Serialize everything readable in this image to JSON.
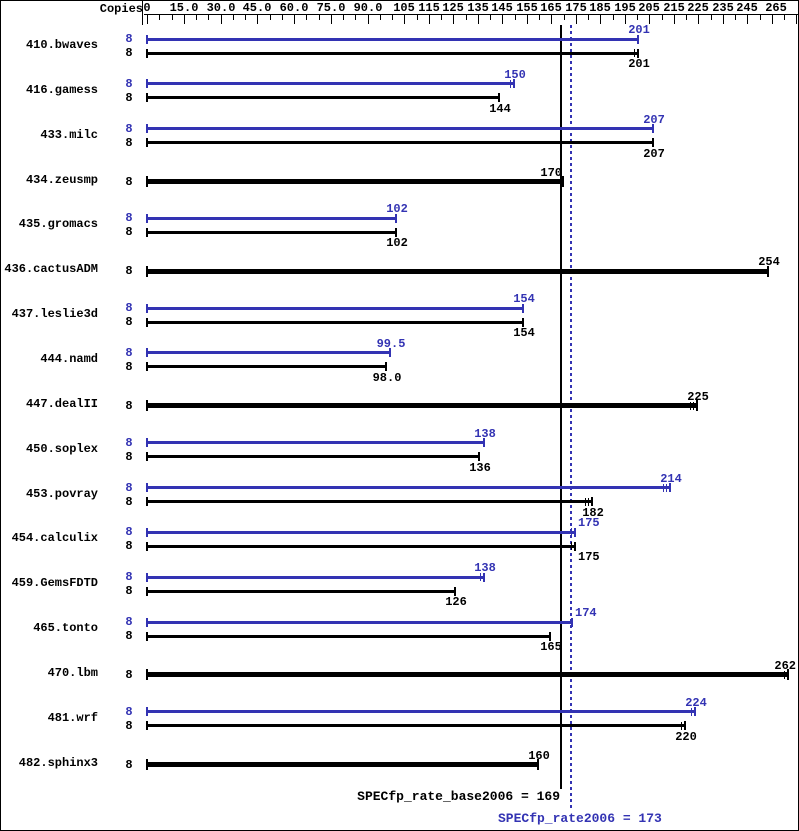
{
  "header": {
    "copies_label": "Copies"
  },
  "colors": {
    "peak": "#3333b3",
    "base": "#000000",
    "background": "#ffffff"
  },
  "footer": {
    "base_result": "SPECfp_rate_base2006 = 169",
    "peak_result": "SPECfp_rate2006 = 173"
  },
  "chart_data": {
    "type": "bar",
    "orientation": "horizontal",
    "title": "",
    "xlabel": "",
    "ylabel": "Copies",
    "axis": {
      "min": 0,
      "max": 265,
      "minor_step": 5,
      "ticks": [
        {
          "v": 0,
          "label": "0"
        },
        {
          "v": 15,
          "label": "15.0"
        },
        {
          "v": 30,
          "label": "30.0"
        },
        {
          "v": 45,
          "label": "45.0"
        },
        {
          "v": 60,
          "label": "60.0"
        },
        {
          "v": 75,
          "label": "75.0"
        },
        {
          "v": 90,
          "label": "90.0"
        },
        {
          "v": 105,
          "label": "105"
        },
        {
          "v": 115,
          "label": "115"
        },
        {
          "v": 125,
          "label": "125"
        },
        {
          "v": 135,
          "label": "135"
        },
        {
          "v": 145,
          "label": "145"
        },
        {
          "v": 155,
          "label": "155"
        },
        {
          "v": 165,
          "label": "165"
        },
        {
          "v": 175,
          "label": "175"
        },
        {
          "v": 185,
          "label": "185"
        },
        {
          "v": 195,
          "label": "195"
        },
        {
          "v": 205,
          "label": "205"
        },
        {
          "v": 215,
          "label": "215"
        },
        {
          "v": 225,
          "label": "225"
        },
        {
          "v": 235,
          "label": "235"
        },
        {
          "v": 245,
          "label": "245"
        },
        {
          "v": 255,
          "label": ""
        },
        {
          "v": 265,
          "label": "265"
        }
      ]
    },
    "reference_lines": [
      {
        "name": "base-mean-line",
        "value": 169,
        "style": "solid",
        "color": "#000000"
      },
      {
        "name": "peak-mean-line",
        "value": 173,
        "style": "dotted",
        "color": "#3333b3"
      }
    ],
    "series": [
      {
        "name": "peak",
        "color": "#3333b3"
      },
      {
        "name": "base",
        "color": "#000000"
      }
    ],
    "benchmarks": [
      {
        "name": "410.bwaves",
        "copies": 8,
        "peak": 201,
        "peak_label": "201",
        "peak_end_ticks": 1,
        "base": 201,
        "base_label": "201",
        "base_end_ticks": 2
      },
      {
        "name": "416.gamess",
        "copies": 8,
        "peak": 150,
        "peak_label": "150",
        "peak_end_ticks": 2,
        "base": 144,
        "base_label": "144",
        "base_end_ticks": 1
      },
      {
        "name": "433.milc",
        "copies": 8,
        "peak": 207,
        "peak_label": "207",
        "peak_end_ticks": 1,
        "base": 207,
        "base_label": "207",
        "base_end_ticks": 1
      },
      {
        "name": "434.zeusmp",
        "copies": 8,
        "peak": null,
        "peak_label": "",
        "peak_end_ticks": 0,
        "base": 170,
        "base_label": "170",
        "base_end_ticks": 1
      },
      {
        "name": "435.gromacs",
        "copies": 8,
        "peak": 102,
        "peak_label": "102",
        "peak_end_ticks": 1,
        "base": 102,
        "base_label": "102",
        "base_end_ticks": 1
      },
      {
        "name": "436.cactusADM",
        "copies": 8,
        "peak": null,
        "peak_label": "",
        "peak_end_ticks": 0,
        "base": 254,
        "base_label": "254",
        "base_end_ticks": 1
      },
      {
        "name": "437.leslie3d",
        "copies": 8,
        "peak": 154,
        "peak_label": "154",
        "peak_end_ticks": 1,
        "base": 154,
        "base_label": "154",
        "base_end_ticks": 1
      },
      {
        "name": "444.namd",
        "copies": 8,
        "peak": 99.5,
        "peak_label": "99.5",
        "peak_end_ticks": 1,
        "base": 98.0,
        "base_label": "98.0",
        "base_end_ticks": 1
      },
      {
        "name": "447.dealII",
        "copies": 8,
        "peak": null,
        "peak_label": "",
        "peak_end_ticks": 0,
        "base": 225,
        "base_label": "225",
        "base_end_ticks": 3
      },
      {
        "name": "450.soplex",
        "copies": 8,
        "peak": 138,
        "peak_label": "138",
        "peak_end_ticks": 1,
        "base": 136,
        "base_label": "136",
        "base_end_ticks": 1
      },
      {
        "name": "453.povray",
        "copies": 8,
        "peak": 214,
        "peak_label": "214",
        "peak_end_ticks": 3,
        "base": 182,
        "base_label": "182",
        "base_end_ticks": 3
      },
      {
        "name": "454.calculix",
        "copies": 8,
        "peak": 175,
        "peak_label": "175",
        "peak_end_ticks": 2,
        "base": 175,
        "base_label": "175",
        "base_end_ticks": 2
      },
      {
        "name": "459.GemsFDTD",
        "copies": 8,
        "peak": 138,
        "peak_label": "138",
        "peak_end_ticks": 2,
        "base": 126,
        "base_label": "126",
        "base_end_ticks": 1
      },
      {
        "name": "465.tonto",
        "copies": 8,
        "peak": 174,
        "peak_label": "174",
        "peak_end_ticks": 1,
        "base": 165,
        "base_label": "165",
        "base_end_ticks": 1
      },
      {
        "name": "470.lbm",
        "copies": 8,
        "peak": null,
        "peak_label": "",
        "peak_end_ticks": 0,
        "base": 262,
        "base_label": "262",
        "base_end_ticks": 2
      },
      {
        "name": "481.wrf",
        "copies": 8,
        "peak": 224,
        "peak_label": "224",
        "peak_end_ticks": 2,
        "base": 220,
        "base_label": "220",
        "base_end_ticks": 2
      },
      {
        "name": "482.sphinx3",
        "copies": 8,
        "peak": null,
        "peak_label": "",
        "peak_end_ticks": 0,
        "base": 160,
        "base_label": "160",
        "base_end_ticks": 1
      }
    ]
  }
}
